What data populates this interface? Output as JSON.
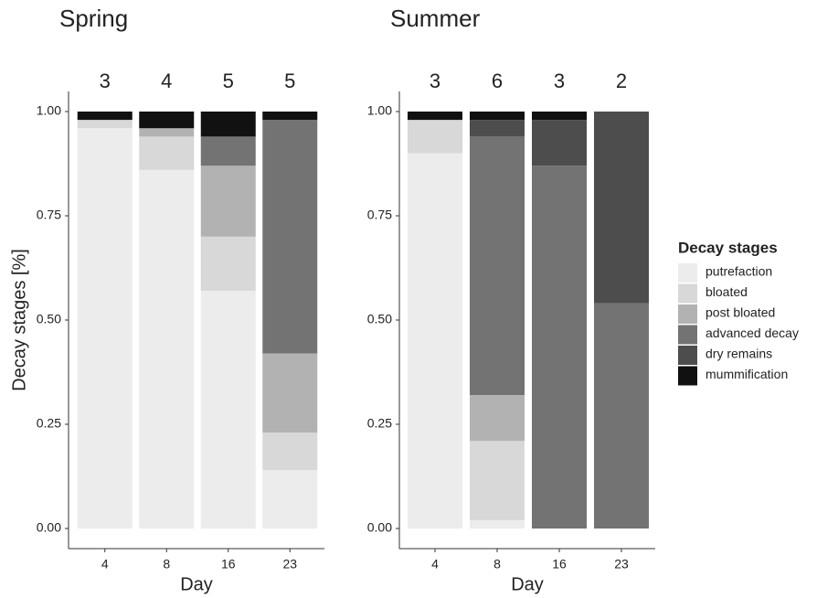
{
  "chart_data": [
    {
      "type": "bar",
      "stacked": true,
      "title": "Spring",
      "ylabel": "Decay stages [%]",
      "xlabel": "Day",
      "categories": [
        "4",
        "8",
        "16",
        "23"
      ],
      "counts": [
        3,
        4,
        5,
        5
      ],
      "ylim": [
        0,
        1
      ],
      "yticks": [
        {
          "value": 0,
          "label": "0.00"
        },
        {
          "value": 0.25,
          "label": "0.25"
        },
        {
          "value": 0.5,
          "label": "0.50"
        },
        {
          "value": 0.75,
          "label": "0.75"
        },
        {
          "value": 1,
          "label": "1.00"
        }
      ],
      "legend_title": "Decay stages",
      "series": [
        {
          "name": "putrefaction",
          "color": "#ececec",
          "values": [
            0.96,
            0.86,
            0.57,
            0.14
          ]
        },
        {
          "name": "bloated",
          "color": "#d8d8d8",
          "values": [
            0.02,
            0.08,
            0.13,
            0.09
          ]
        },
        {
          "name": "post bloated",
          "color": "#b2b2b2",
          "values": [
            0,
            0.02,
            0.17,
            0.19
          ]
        },
        {
          "name": "advanced decay",
          "color": "#737373",
          "values": [
            0,
            0,
            0.07,
            0.56
          ]
        },
        {
          "name": "dry remains",
          "color": "#4d4d4d",
          "values": [
            0,
            0,
            0,
            0
          ]
        },
        {
          "name": "mummification",
          "color": "#111111",
          "values": [
            0.02,
            0.04,
            0.06,
            0.02
          ]
        }
      ]
    },
    {
      "type": "bar",
      "stacked": true,
      "title": "Summer",
      "xlabel": "Day",
      "categories": [
        "4",
        "8",
        "16",
        "23"
      ],
      "counts": [
        3,
        6,
        3,
        2
      ],
      "ylim": [
        0,
        1
      ],
      "yticks": [
        {
          "value": 0,
          "label": "0.00"
        },
        {
          "value": 0.25,
          "label": "0.25"
        },
        {
          "value": 0.5,
          "label": "0.50"
        },
        {
          "value": 0.75,
          "label": "0.75"
        },
        {
          "value": 1,
          "label": "1.00"
        }
      ],
      "series": [
        {
          "name": "putrefaction",
          "color": "#ececec",
          "values": [
            0.9,
            0.02,
            0,
            0
          ]
        },
        {
          "name": "bloated",
          "color": "#d8d8d8",
          "values": [
            0.08,
            0.19,
            0,
            0
          ]
        },
        {
          "name": "post bloated",
          "color": "#b2b2b2",
          "values": [
            0,
            0.11,
            0,
            0
          ]
        },
        {
          "name": "advanced decay",
          "color": "#737373",
          "values": [
            0,
            0.62,
            0.87,
            0.54
          ]
        },
        {
          "name": "dry remains",
          "color": "#4d4d4d",
          "values": [
            0,
            0.04,
            0.11,
            0.46
          ]
        },
        {
          "name": "mummification",
          "color": "#111111",
          "values": [
            0.02,
            0.02,
            0.02,
            0
          ]
        }
      ]
    }
  ]
}
